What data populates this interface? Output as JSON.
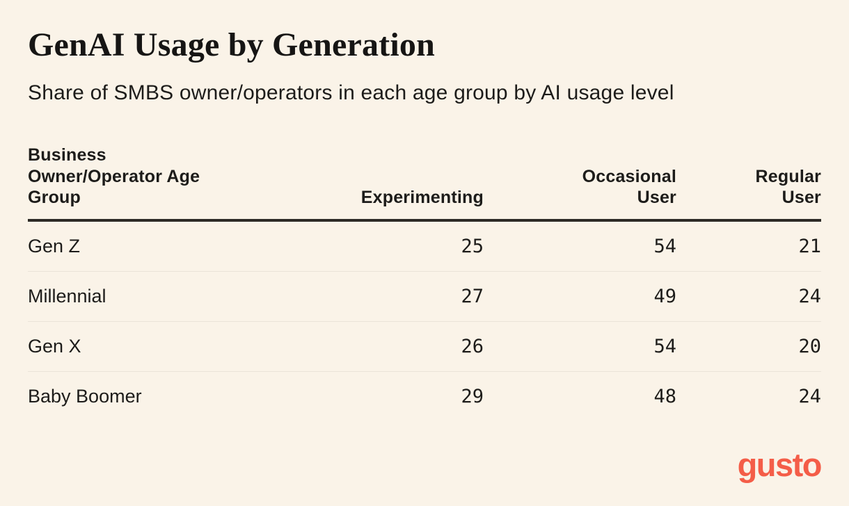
{
  "brand": {
    "logo_text": "gusto",
    "color": "#F45D48"
  },
  "colors": {
    "background": "#FAF3E8",
    "text": "#1D1C1A",
    "header_rule": "#2D2A26",
    "row_divider": "#EAE3D8",
    "brand_coral": "#F45D48"
  },
  "chart_data": {
    "type": "table",
    "title": "GenAI Usage by Generation",
    "subtitle": "Share of SMBS owner/operators in each age group by AI usage level",
    "columns": [
      "Business Owner/Operator Age Group",
      "Experimenting",
      "Occasional User",
      "Regular User"
    ],
    "rows": [
      {
        "label": "Gen Z",
        "values": [
          25,
          54,
          21
        ]
      },
      {
        "label": "Millennial",
        "values": [
          27,
          49,
          24
        ]
      },
      {
        "label": "Gen X",
        "values": [
          26,
          54,
          20
        ]
      },
      {
        "label": "Baby Boomer",
        "values": [
          29,
          48,
          24
        ]
      }
    ],
    "layout_hints": {
      "value_columns_alignment": "right",
      "header_rule": "thick",
      "row_dividers": "thin"
    }
  }
}
